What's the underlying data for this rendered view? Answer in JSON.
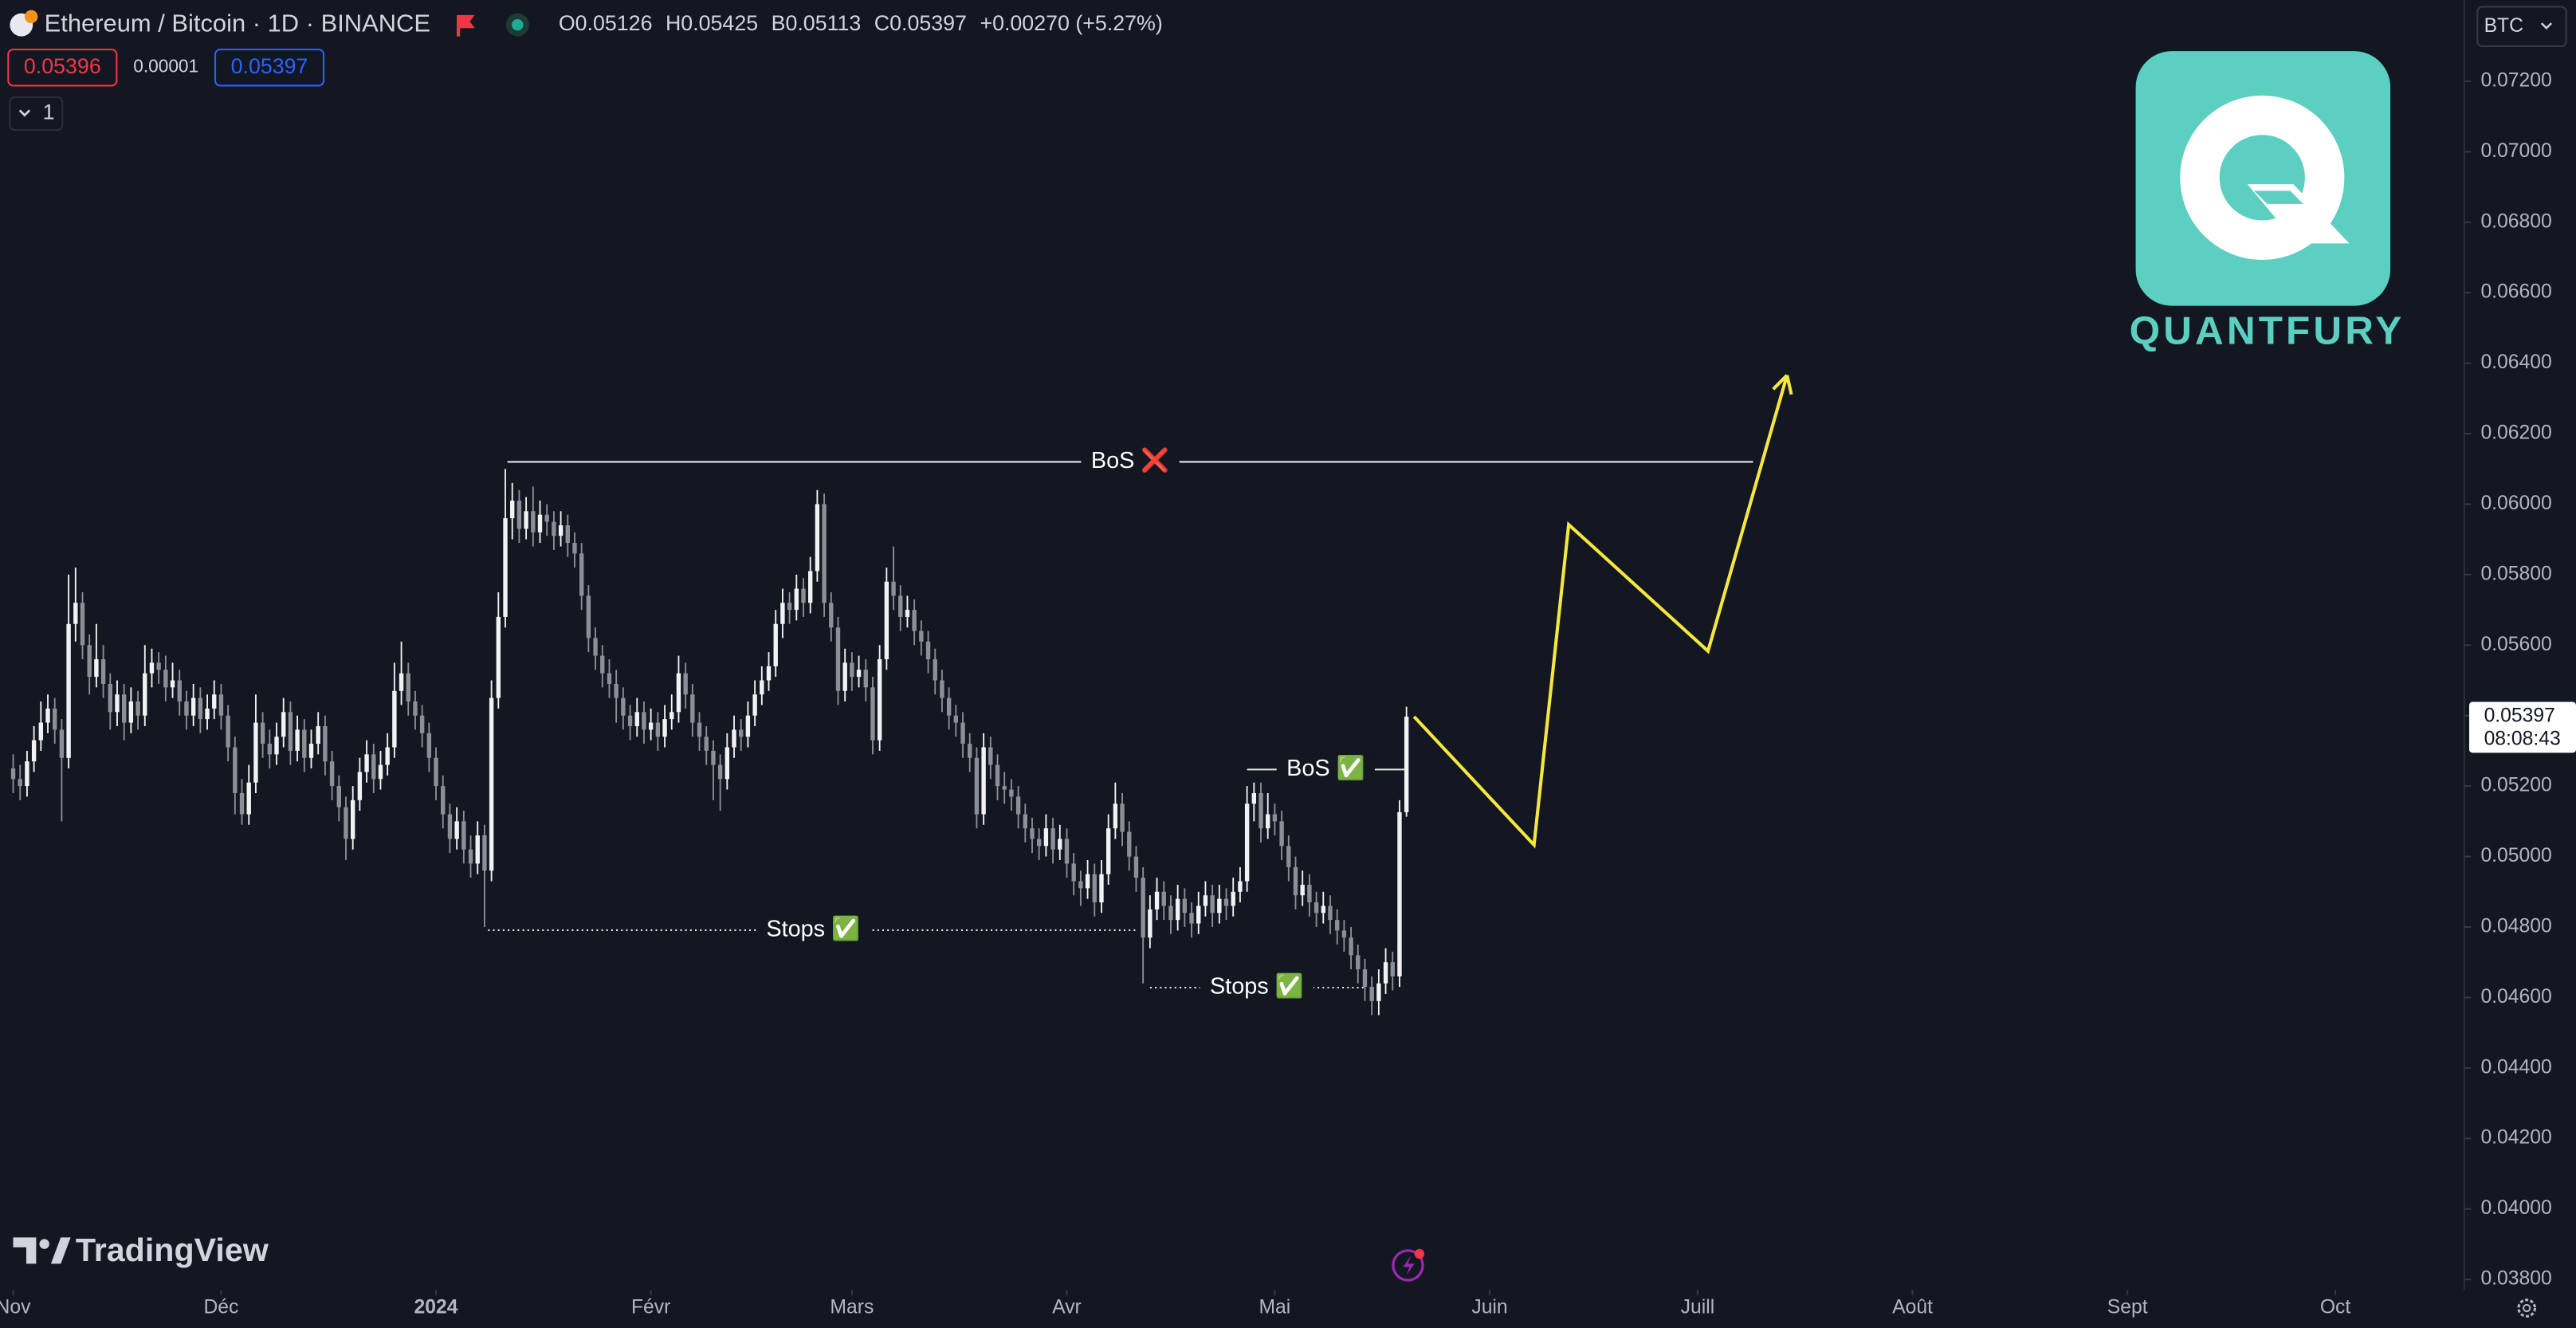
{
  "chart_data": {
    "type": "candlestick",
    "title": "Ethereum / Bitcoin · 1D · BINANCE",
    "legend": [
      {
        "key": "O",
        "value": "0.05126"
      },
      {
        "key": "H",
        "value": "0.05425"
      },
      {
        "key": "B",
        "value": "0.05113"
      },
      {
        "key": "C",
        "value": "0.05397"
      }
    ],
    "change": "+0.00270 (+5.27%)",
    "sell": "0.05396",
    "spread": "0.00001",
    "buy": "0.05397",
    "indicators": "1",
    "currency": "BTC",
    "last_price": 0.05397,
    "countdown": "08:08:43",
    "brand": "QUANTFURY",
    "watermark": "TradingView",
    "up_color": "#f2f2f2",
    "down_color": "#8d8f96",
    "grid": false,
    "xlim": [
      -1.9,
      353.6
    ],
    "ylim": [
      0.0377,
      0.0743
    ],
    "xticks": [
      {
        "value": 0,
        "label": "Nov"
      },
      {
        "value": 30,
        "label": "Déc"
      },
      {
        "value": 61,
        "label": "2024",
        "bold": true
      },
      {
        "value": 92,
        "label": "Févr"
      },
      {
        "value": 121,
        "label": "Mars"
      },
      {
        "value": 152,
        "label": "Avr"
      },
      {
        "value": 182,
        "label": "Mai"
      },
      {
        "value": 213,
        "label": "Juin"
      },
      {
        "value": 243,
        "label": "Juill"
      },
      {
        "value": 274,
        "label": "Août"
      },
      {
        "value": 305,
        "label": "Sept"
      },
      {
        "value": 335,
        "label": "Oct"
      }
    ],
    "yticks": [
      {
        "value": 0.038,
        "label": "0.03800"
      },
      {
        "value": 0.04,
        "label": "0.04000"
      },
      {
        "value": 0.042,
        "label": "0.04200"
      },
      {
        "value": 0.044,
        "label": "0.04400"
      },
      {
        "value": 0.046,
        "label": "0.04600"
      },
      {
        "value": 0.048,
        "label": "0.04800"
      },
      {
        "value": 0.05,
        "label": "0.05000"
      },
      {
        "value": 0.052,
        "label": "0.05200"
      },
      {
        "value": 0.054,
        "label": "0.05400"
      },
      {
        "value": 0.056,
        "label": "0.05600"
      },
      {
        "value": 0.058,
        "label": "0.05800"
      },
      {
        "value": 0.06,
        "label": "0.06000"
      },
      {
        "value": 0.062,
        "label": "0.06200"
      },
      {
        "value": 0.064,
        "label": "0.06400"
      },
      {
        "value": 0.066,
        "label": "0.06600"
      },
      {
        "value": 0.068,
        "label": "0.06800"
      },
      {
        "value": 0.07,
        "label": "0.07000"
      },
      {
        "value": 0.072,
        "label": "0.07200"
      }
    ],
    "annotations": [
      {
        "label": "BoS ❌",
        "x": [
          71.3,
          251
        ],
        "y": 0.0612,
        "style": "solid"
      },
      {
        "label": "BoS ✅",
        "x": [
          178,
          200.7
        ],
        "y": 0.05247,
        "style": "solid"
      },
      {
        "label": "Stops ✅",
        "x": [
          68.5,
          162.3
        ],
        "y": 0.04791,
        "style": "dotted"
      },
      {
        "label": "Stops ✅",
        "x": [
          164,
          194.8
        ],
        "y": 0.04628,
        "style": "dotted"
      }
    ],
    "projection": {
      "color": "#f5e642",
      "x": [
        202.1,
        219.4,
        224.4,
        244.5,
        255.9
      ],
      "y": [
        0.05397,
        0.05033,
        0.05942,
        0.05583,
        0.06366
      ]
    },
    "ohlc": [
      [
        0.0525,
        0.0529,
        0.0518,
        0.0522
      ],
      [
        0.0522,
        0.0526,
        0.0516,
        0.052
      ],
      [
        0.052,
        0.053,
        0.0517,
        0.0527
      ],
      [
        0.0527,
        0.0537,
        0.0524,
        0.0533
      ],
      [
        0.0533,
        0.0544,
        0.053,
        0.0538
      ],
      [
        0.0538,
        0.0546,
        0.0535,
        0.0542
      ],
      [
        0.0542,
        0.0545,
        0.0532,
        0.0536
      ],
      [
        0.0536,
        0.0539,
        0.051,
        0.0528
      ],
      [
        0.0528,
        0.058,
        0.0525,
        0.0566
      ],
      [
        0.0566,
        0.0582,
        0.0561,
        0.0572
      ],
      [
        0.0572,
        0.0575,
        0.0556,
        0.056
      ],
      [
        0.056,
        0.0563,
        0.0546,
        0.0551
      ],
      [
        0.0551,
        0.0566,
        0.0548,
        0.0556
      ],
      [
        0.0556,
        0.056,
        0.0545,
        0.0549
      ],
      [
        0.0549,
        0.0552,
        0.0536,
        0.0541
      ],
      [
        0.0541,
        0.055,
        0.0537,
        0.0546
      ],
      [
        0.0546,
        0.0549,
        0.0533,
        0.0538
      ],
      [
        0.0538,
        0.0548,
        0.0535,
        0.0544
      ],
      [
        0.0544,
        0.0547,
        0.0536,
        0.054
      ],
      [
        0.054,
        0.056,
        0.0537,
        0.0552
      ],
      [
        0.0552,
        0.0559,
        0.0548,
        0.0555
      ],
      [
        0.0555,
        0.0558,
        0.0549,
        0.0553
      ],
      [
        0.0553,
        0.0557,
        0.0544,
        0.0548
      ],
      [
        0.0548,
        0.0555,
        0.0545,
        0.055
      ],
      [
        0.055,
        0.0553,
        0.054,
        0.0544
      ],
      [
        0.0544,
        0.0547,
        0.0536,
        0.054
      ],
      [
        0.054,
        0.0549,
        0.0537,
        0.0545
      ],
      [
        0.0545,
        0.0548,
        0.0535,
        0.0539
      ],
      [
        0.0539,
        0.0546,
        0.0536,
        0.0542
      ],
      [
        0.0542,
        0.055,
        0.0539,
        0.0546
      ],
      [
        0.0546,
        0.0549,
        0.0536,
        0.054
      ],
      [
        0.054,
        0.0543,
        0.0527,
        0.0531
      ],
      [
        0.0531,
        0.0534,
        0.0512,
        0.0518
      ],
      [
        0.0518,
        0.0522,
        0.0509,
        0.0512
      ],
      [
        0.0512,
        0.0526,
        0.0509,
        0.0521
      ],
      [
        0.0521,
        0.0546,
        0.0518,
        0.0538
      ],
      [
        0.0538,
        0.0541,
        0.0528,
        0.0532
      ],
      [
        0.0532,
        0.0536,
        0.0525,
        0.0529
      ],
      [
        0.0529,
        0.0538,
        0.0526,
        0.0534
      ],
      [
        0.0534,
        0.0545,
        0.0531,
        0.0541
      ],
      [
        0.0541,
        0.0544,
        0.0526,
        0.053
      ],
      [
        0.053,
        0.054,
        0.0527,
        0.0536
      ],
      [
        0.0536,
        0.0539,
        0.0524,
        0.0528
      ],
      [
        0.0528,
        0.0536,
        0.0525,
        0.0532
      ],
      [
        0.0532,
        0.0541,
        0.0529,
        0.0537
      ],
      [
        0.0537,
        0.054,
        0.0523,
        0.0527
      ],
      [
        0.0527,
        0.053,
        0.0516,
        0.052
      ],
      [
        0.052,
        0.0523,
        0.051,
        0.0514
      ],
      [
        0.0514,
        0.0517,
        0.0499,
        0.0505
      ],
      [
        0.0505,
        0.052,
        0.0502,
        0.0516
      ],
      [
        0.0516,
        0.0528,
        0.0513,
        0.0524
      ],
      [
        0.0524,
        0.0533,
        0.0521,
        0.0529
      ],
      [
        0.0529,
        0.0532,
        0.0518,
        0.0522
      ],
      [
        0.0522,
        0.053,
        0.0519,
        0.0526
      ],
      [
        0.0526,
        0.0535,
        0.0523,
        0.0531
      ],
      [
        0.0531,
        0.0555,
        0.0528,
        0.0547
      ],
      [
        0.0547,
        0.0561,
        0.0543,
        0.0552
      ],
      [
        0.0552,
        0.0555,
        0.054,
        0.0544
      ],
      [
        0.0544,
        0.0547,
        0.0536,
        0.054
      ],
      [
        0.054,
        0.0543,
        0.0531,
        0.0535
      ],
      [
        0.0535,
        0.0538,
        0.0524,
        0.0528
      ],
      [
        0.0528,
        0.0531,
        0.0516,
        0.052
      ],
      [
        0.052,
        0.0523,
        0.0508,
        0.0512
      ],
      [
        0.0512,
        0.0515,
        0.0501,
        0.0505
      ],
      [
        0.0505,
        0.0514,
        0.0502,
        0.051
      ],
      [
        0.051,
        0.0513,
        0.0498,
        0.0502
      ],
      [
        0.0502,
        0.0506,
        0.0494,
        0.0498
      ],
      [
        0.0498,
        0.051,
        0.0495,
        0.0506
      ],
      [
        0.0506,
        0.0509,
        0.048,
        0.0496
      ],
      [
        0.0496,
        0.055,
        0.0493,
        0.0545
      ],
      [
        0.0545,
        0.0575,
        0.0542,
        0.0568
      ],
      [
        0.0568,
        0.061,
        0.0565,
        0.0596
      ],
      [
        0.0596,
        0.0606,
        0.059,
        0.0601
      ],
      [
        0.0601,
        0.0604,
        0.0589,
        0.0593
      ],
      [
        0.0593,
        0.0602,
        0.059,
        0.0598
      ],
      [
        0.0598,
        0.0605,
        0.0588,
        0.0592
      ],
      [
        0.0592,
        0.0601,
        0.0589,
        0.0597
      ],
      [
        0.0597,
        0.06,
        0.0591,
        0.0595
      ],
      [
        0.0595,
        0.0598,
        0.0587,
        0.0591
      ],
      [
        0.0591,
        0.0598,
        0.0588,
        0.0594
      ],
      [
        0.0594,
        0.0597,
        0.0585,
        0.0589
      ],
      [
        0.0589,
        0.0592,
        0.0582,
        0.0586
      ],
      [
        0.0586,
        0.0589,
        0.057,
        0.0574
      ],
      [
        0.0574,
        0.0577,
        0.0558,
        0.0562
      ],
      [
        0.0562,
        0.0565,
        0.0553,
        0.0557
      ],
      [
        0.0557,
        0.056,
        0.0548,
        0.0552
      ],
      [
        0.0552,
        0.0556,
        0.0545,
        0.0549
      ],
      [
        0.0549,
        0.0553,
        0.0538,
        0.0545
      ],
      [
        0.0545,
        0.0548,
        0.0536,
        0.054
      ],
      [
        0.054,
        0.0543,
        0.0533,
        0.0537
      ],
      [
        0.0537,
        0.0545,
        0.0534,
        0.0541
      ],
      [
        0.0541,
        0.0544,
        0.0532,
        0.0536
      ],
      [
        0.0536,
        0.0542,
        0.0533,
        0.0538
      ],
      [
        0.0538,
        0.0541,
        0.053,
        0.0534
      ],
      [
        0.0534,
        0.0543,
        0.0531,
        0.0539
      ],
      [
        0.0539,
        0.0546,
        0.0536,
        0.0541
      ],
      [
        0.0541,
        0.0557,
        0.0538,
        0.0552
      ],
      [
        0.0552,
        0.0555,
        0.0542,
        0.0546
      ],
      [
        0.0546,
        0.0549,
        0.0534,
        0.0538
      ],
      [
        0.0538,
        0.0541,
        0.053,
        0.0534
      ],
      [
        0.0534,
        0.0537,
        0.0526,
        0.053
      ],
      [
        0.053,
        0.0533,
        0.0516,
        0.0526
      ],
      [
        0.0526,
        0.0529,
        0.0513,
        0.0522
      ],
      [
        0.0522,
        0.0535,
        0.0519,
        0.0531
      ],
      [
        0.0531,
        0.054,
        0.0528,
        0.0536
      ],
      [
        0.0536,
        0.0539,
        0.053,
        0.0534
      ],
      [
        0.0534,
        0.0544,
        0.0531,
        0.054
      ],
      [
        0.054,
        0.055,
        0.0537,
        0.0546
      ],
      [
        0.0546,
        0.0554,
        0.0543,
        0.055
      ],
      [
        0.055,
        0.0558,
        0.0547,
        0.0554
      ],
      [
        0.0554,
        0.057,
        0.0551,
        0.0566
      ],
      [
        0.0566,
        0.0576,
        0.0562,
        0.0572
      ],
      [
        0.0572,
        0.0575,
        0.0566,
        0.057
      ],
      [
        0.057,
        0.058,
        0.0567,
        0.0576
      ],
      [
        0.0576,
        0.0579,
        0.0568,
        0.0572
      ],
      [
        0.0572,
        0.0585,
        0.0569,
        0.0581
      ],
      [
        0.0581,
        0.0604,
        0.0578,
        0.06
      ],
      [
        0.06,
        0.0603,
        0.0568,
        0.0572
      ],
      [
        0.0572,
        0.0575,
        0.0561,
        0.0565
      ],
      [
        0.0565,
        0.0568,
        0.0543,
        0.0547
      ],
      [
        0.0547,
        0.0559,
        0.0544,
        0.0555
      ],
      [
        0.0555,
        0.0558,
        0.0547,
        0.0551
      ],
      [
        0.0551,
        0.0557,
        0.0548,
        0.0553
      ],
      [
        0.0553,
        0.0556,
        0.0544,
        0.0548
      ],
      [
        0.0548,
        0.0551,
        0.0529,
        0.0533
      ],
      [
        0.0533,
        0.056,
        0.053,
        0.0556
      ],
      [
        0.0556,
        0.0582,
        0.0553,
        0.0578
      ],
      [
        0.0578,
        0.0588,
        0.057,
        0.0574
      ],
      [
        0.0574,
        0.0577,
        0.0564,
        0.0568
      ],
      [
        0.0568,
        0.0574,
        0.0565,
        0.057
      ],
      [
        0.057,
        0.0573,
        0.056,
        0.0564
      ],
      [
        0.0564,
        0.0567,
        0.0557,
        0.0561
      ],
      [
        0.0561,
        0.0564,
        0.0552,
        0.0556
      ],
      [
        0.0556,
        0.0559,
        0.0546,
        0.055
      ],
      [
        0.055,
        0.0553,
        0.0541,
        0.0545
      ],
      [
        0.0545,
        0.0548,
        0.0536,
        0.054
      ],
      [
        0.054,
        0.0543,
        0.0534,
        0.0538
      ],
      [
        0.0538,
        0.0541,
        0.0528,
        0.0532
      ],
      [
        0.0532,
        0.0535,
        0.0524,
        0.0528
      ],
      [
        0.0528,
        0.0531,
        0.0508,
        0.0512
      ],
      [
        0.0512,
        0.0535,
        0.0509,
        0.0531
      ],
      [
        0.0531,
        0.0534,
        0.0522,
        0.0526
      ],
      [
        0.0526,
        0.0529,
        0.0516,
        0.052
      ],
      [
        0.052,
        0.0524,
        0.0515,
        0.0519
      ],
      [
        0.0519,
        0.0522,
        0.0513,
        0.0517
      ],
      [
        0.0517,
        0.052,
        0.0508,
        0.0512
      ],
      [
        0.0512,
        0.0515,
        0.0504,
        0.0508
      ],
      [
        0.0508,
        0.0511,
        0.0501,
        0.0505
      ],
      [
        0.0505,
        0.0508,
        0.0499,
        0.0503
      ],
      [
        0.0503,
        0.0512,
        0.05,
        0.0508
      ],
      [
        0.0508,
        0.0511,
        0.0498,
        0.0502
      ],
      [
        0.0502,
        0.0509,
        0.0499,
        0.0505
      ],
      [
        0.0505,
        0.0508,
        0.0494,
        0.0498
      ],
      [
        0.0498,
        0.0501,
        0.0489,
        0.0493
      ],
      [
        0.0493,
        0.0496,
        0.0486,
        0.0491
      ],
      [
        0.0491,
        0.0499,
        0.0488,
        0.0495
      ],
      [
        0.0495,
        0.0498,
        0.0483,
        0.0487
      ],
      [
        0.0487,
        0.0499,
        0.0484,
        0.0495
      ],
      [
        0.0495,
        0.0512,
        0.0492,
        0.0508
      ],
      [
        0.0508,
        0.0521,
        0.0505,
        0.0515
      ],
      [
        0.0515,
        0.0518,
        0.0503,
        0.0507
      ],
      [
        0.0507,
        0.051,
        0.0496,
        0.05
      ],
      [
        0.05,
        0.0503,
        0.049,
        0.0494
      ],
      [
        0.0494,
        0.0497,
        0.0464,
        0.0477
      ],
      [
        0.0477,
        0.0489,
        0.0474,
        0.0485
      ],
      [
        0.0485,
        0.0494,
        0.0482,
        0.049
      ],
      [
        0.049,
        0.0493,
        0.0482,
        0.0486
      ],
      [
        0.0486,
        0.0489,
        0.0478,
        0.0482
      ],
      [
        0.0482,
        0.0492,
        0.0479,
        0.0488
      ],
      [
        0.0488,
        0.0491,
        0.048,
        0.0484
      ],
      [
        0.0484,
        0.0487,
        0.0477,
        0.0481
      ],
      [
        0.0481,
        0.049,
        0.0478,
        0.0486
      ],
      [
        0.0486,
        0.0493,
        0.0483,
        0.0489
      ],
      [
        0.0489,
        0.0492,
        0.048,
        0.0484
      ],
      [
        0.0484,
        0.0492,
        0.0481,
        0.0488
      ],
      [
        0.0488,
        0.0491,
        0.0482,
        0.0486
      ],
      [
        0.0486,
        0.0494,
        0.0483,
        0.049
      ],
      [
        0.049,
        0.0497,
        0.0487,
        0.0493
      ],
      [
        0.0493,
        0.052,
        0.049,
        0.0515
      ],
      [
        0.0515,
        0.0521,
        0.051,
        0.0518
      ],
      [
        0.0518,
        0.0521,
        0.0504,
        0.0508
      ],
      [
        0.0508,
        0.0518,
        0.0505,
        0.0512
      ],
      [
        0.0512,
        0.0515,
        0.0506,
        0.051
      ],
      [
        0.051,
        0.0513,
        0.0499,
        0.0503
      ],
      [
        0.0503,
        0.0506,
        0.0493,
        0.0497
      ],
      [
        0.0497,
        0.05,
        0.0485,
        0.0489
      ],
      [
        0.0489,
        0.0496,
        0.0486,
        0.0492
      ],
      [
        0.0492,
        0.0495,
        0.0483,
        0.0487
      ],
      [
        0.0487,
        0.049,
        0.048,
        0.0484
      ],
      [
        0.0484,
        0.049,
        0.0481,
        0.0486
      ],
      [
        0.0486,
        0.0489,
        0.0478,
        0.0482
      ],
      [
        0.0482,
        0.0485,
        0.0475,
        0.0479
      ],
      [
        0.0479,
        0.0482,
        0.0473,
        0.0477
      ],
      [
        0.0477,
        0.048,
        0.0468,
        0.0472
      ],
      [
        0.0472,
        0.0475,
        0.0464,
        0.0468
      ],
      [
        0.0468,
        0.0471,
        0.0459,
        0.0463
      ],
      [
        0.0463,
        0.0466,
        0.0455,
        0.0459
      ],
      [
        0.0459,
        0.0468,
        0.0455,
        0.0464
      ],
      [
        0.0464,
        0.0474,
        0.0461,
        0.047
      ],
      [
        0.047,
        0.0473,
        0.0462,
        0.0466
      ],
      [
        0.0466,
        0.0516,
        0.0463,
        0.05126
      ],
      [
        0.05126,
        0.05425,
        0.05113,
        0.05397
      ]
    ]
  }
}
